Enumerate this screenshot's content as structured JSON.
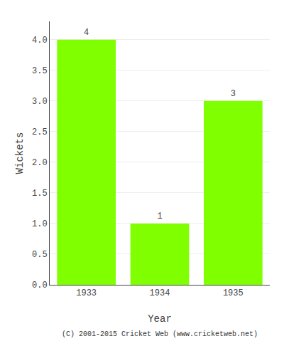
{
  "chart_data": {
    "type": "bar",
    "categories": [
      "1933",
      "1934",
      "1935"
    ],
    "values": [
      4,
      1,
      3
    ],
    "color": "#7fff00",
    "xlabel": "Year",
    "ylabel": "Wickets",
    "ylim": [
      0,
      4.3
    ],
    "yticks": [
      {
        "value": 0.0,
        "label": "0.0"
      },
      0.5,
      {
        "value": 1.0,
        "label": "1.0"
      },
      1.5,
      {
        "value": 2.0,
        "label": "2.0"
      },
      2.5,
      {
        "value": 3.0,
        "label": "3.0"
      },
      3.5,
      {
        "value": 4.0,
        "label": "4.0"
      }
    ],
    "grid": true,
    "data_labels": true,
    "annotations": [
      "(C) 2001-2015 Cricket Web (www.cricketweb.net)"
    ]
  }
}
